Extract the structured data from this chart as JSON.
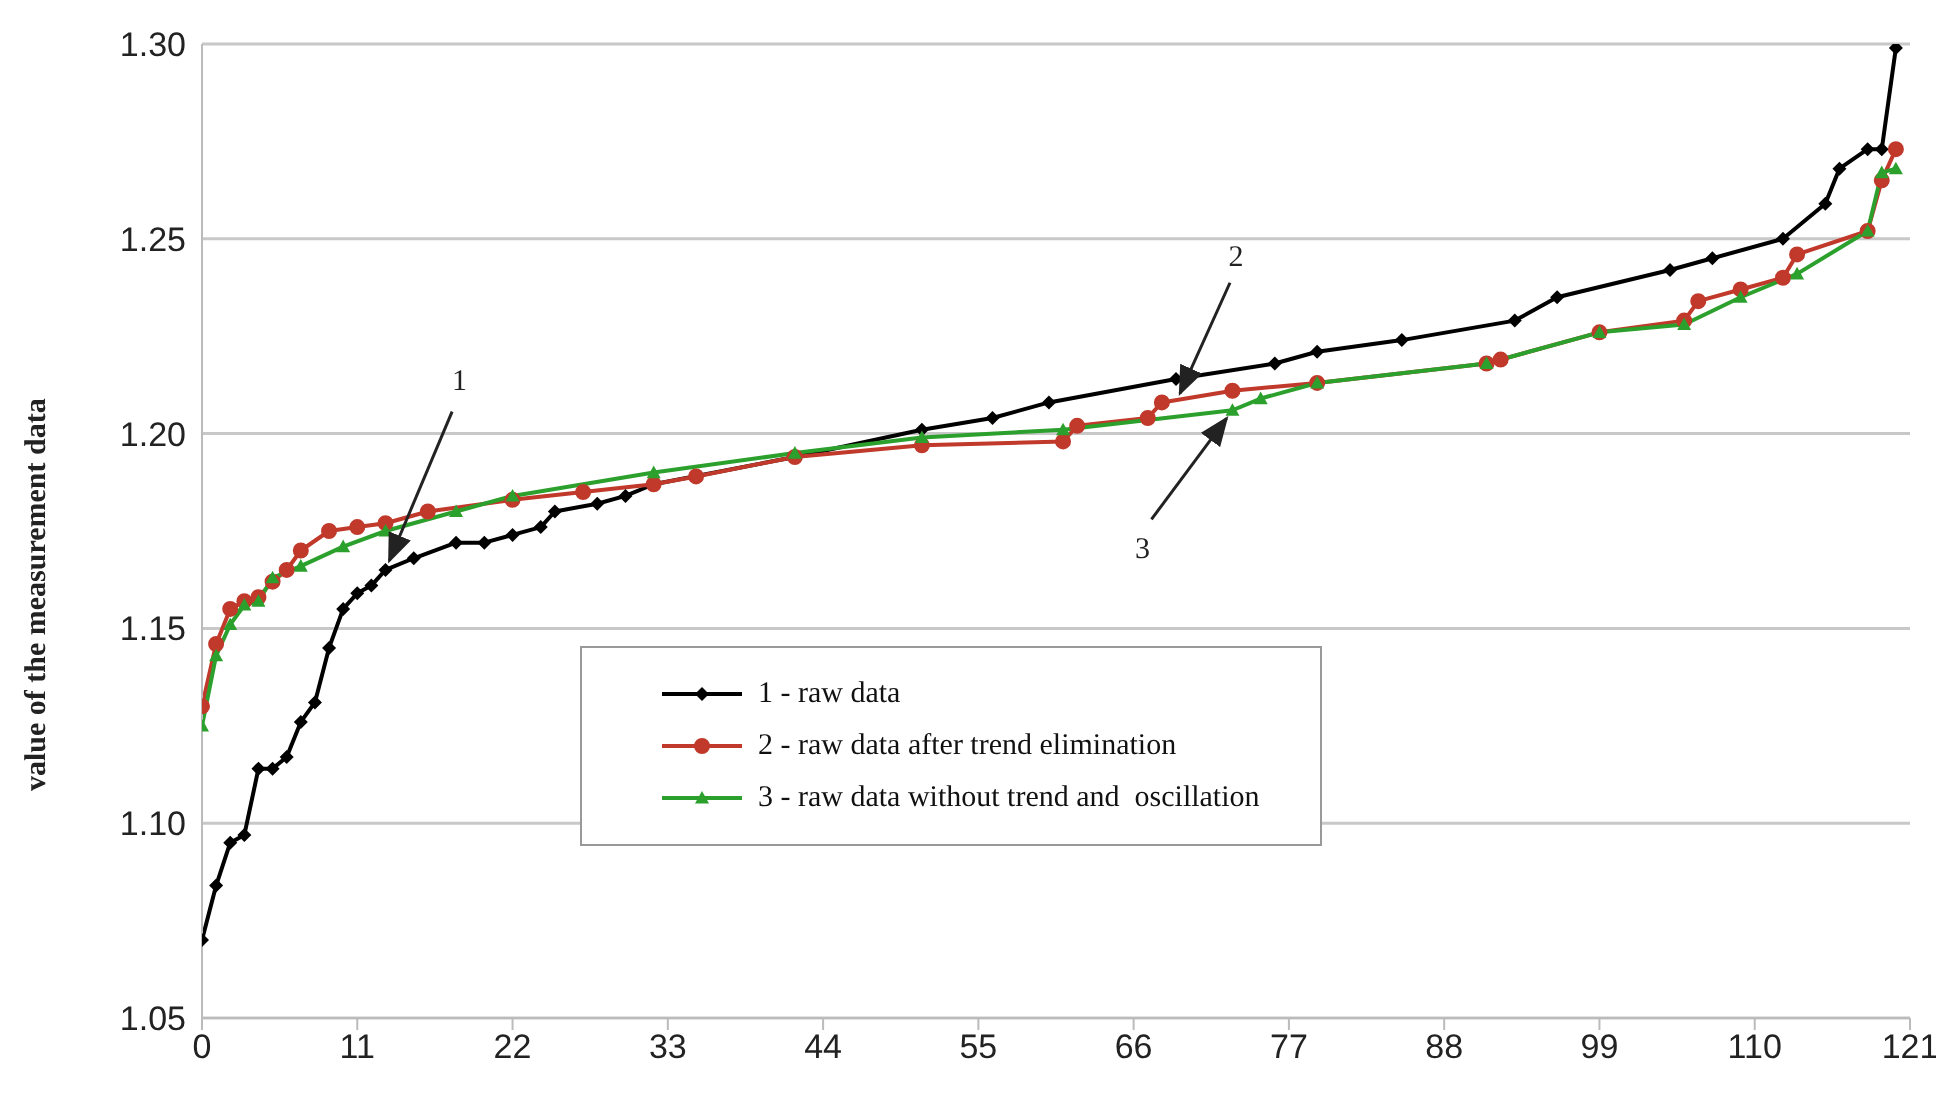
{
  "chart_data": {
    "type": "line",
    "ylabel": "value of the measurement data",
    "xlim": [
      0,
      121
    ],
    "xticks": [
      0,
      11,
      22,
      33,
      44,
      55,
      66,
      77,
      88,
      99,
      110,
      121
    ],
    "ylim": [
      1.05,
      1.3
    ],
    "yticks": [
      1.05,
      {
        "value": 1.1,
        "label": "1.10"
      },
      1.15,
      {
        "value": 1.2,
        "label": "1.20"
      },
      1.25,
      {
        "value": 1.3,
        "label": "1.30"
      }
    ],
    "grid": "y",
    "legend": "bottom",
    "line_style": "solid",
    "annotations": [
      {
        "text": "1",
        "x": 13,
        "y": 1.165
      },
      {
        "text": "2",
        "x": 69,
        "y": 1.208
      },
      {
        "text": "3",
        "x": 73,
        "y": 1.206
      }
    ],
    "series": [
      {
        "name": "1 - raw data",
        "color": "#000000",
        "marker": "diamond",
        "x": [
          0,
          1,
          2,
          3,
          4,
          5,
          6,
          7,
          8,
          9,
          10,
          11,
          12,
          13,
          15,
          18,
          20,
          22,
          24,
          25,
          28,
          30,
          32,
          42,
          51,
          56,
          60,
          69,
          76,
          79,
          85,
          93,
          96,
          104,
          107,
          112,
          115,
          116,
          118,
          119,
          120
        ],
        "values": [
          1.07,
          1.084,
          1.095,
          1.097,
          1.114,
          1.114,
          1.117,
          1.126,
          1.131,
          1.145,
          1.155,
          1.159,
          1.161,
          1.165,
          1.168,
          1.172,
          1.172,
          1.174,
          1.176,
          1.18,
          1.182,
          1.184,
          1.187,
          1.194,
          1.201,
          1.204,
          1.208,
          1.214,
          1.218,
          1.221,
          1.224,
          1.229,
          1.235,
          1.242,
          1.245,
          1.25,
          1.259,
          1.268,
          1.273,
          1.273,
          1.299
        ]
      },
      {
        "name": "2 - raw data after trend elimination",
        "color": "#c0392b",
        "marker": "circle",
        "x": [
          0,
          1,
          2,
          3,
          4,
          5,
          6,
          7,
          9,
          11,
          13,
          16,
          22,
          27,
          32,
          35,
          42,
          51,
          61,
          62,
          67,
          68,
          73,
          79,
          91,
          92,
          99,
          105,
          106,
          109,
          112,
          113,
          118,
          119,
          120
        ],
        "values": [
          1.13,
          1.146,
          1.155,
          1.157,
          1.158,
          1.162,
          1.165,
          1.17,
          1.175,
          1.176,
          1.177,
          1.18,
          1.183,
          1.185,
          1.187,
          1.189,
          1.194,
          1.197,
          1.198,
          1.202,
          1.204,
          1.208,
          1.211,
          1.213,
          1.218,
          1.219,
          1.226,
          1.229,
          1.234,
          1.237,
          1.24,
          1.246,
          1.252,
          1.265,
          1.273
        ]
      },
      {
        "name": "3 - raw data without trend and  oscillation",
        "color": "#2ca02c",
        "marker": "triangle",
        "x": [
          0,
          1,
          2,
          3,
          4,
          5,
          7,
          10,
          13,
          18,
          22,
          32,
          42,
          51,
          61,
          73,
          75,
          79,
          91,
          99,
          105,
          109,
          113,
          118,
          119,
          120
        ],
        "values": [
          1.125,
          1.143,
          1.151,
          1.156,
          1.157,
          1.163,
          1.166,
          1.171,
          1.175,
          1.18,
          1.184,
          1.19,
          1.195,
          1.199,
          1.201,
          1.206,
          1.209,
          1.213,
          1.218,
          1.226,
          1.228,
          1.235,
          1.241,
          1.252,
          1.267,
          1.268
        ]
      }
    ]
  }
}
